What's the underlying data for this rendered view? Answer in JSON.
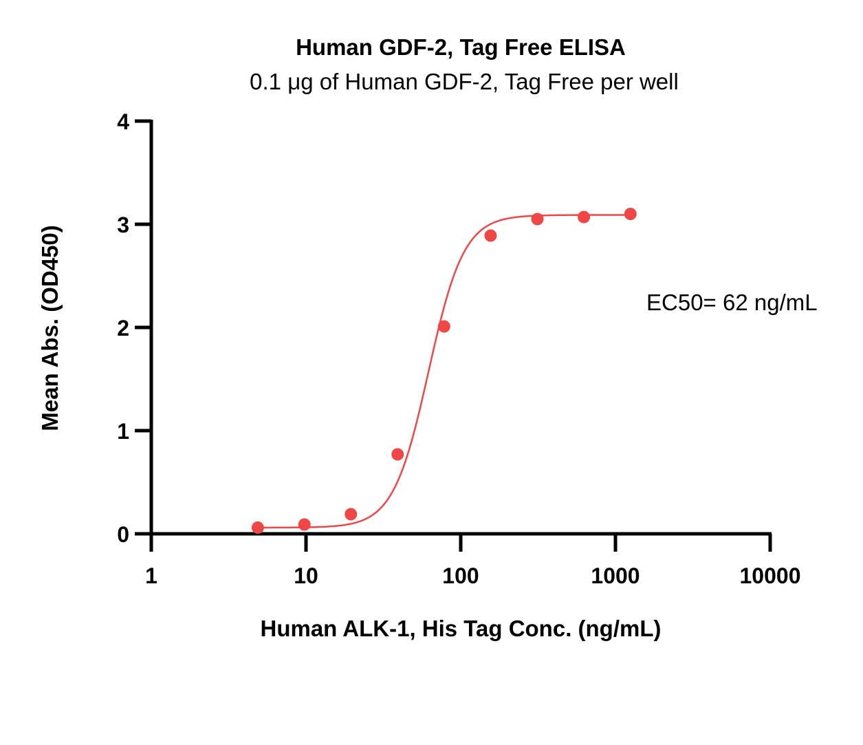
{
  "chart_data": {
    "type": "scatter",
    "title": "Human GDF-2, Tag Free ELISA",
    "subtitle": "0.1 μg of Human GDF-2, Tag Free per well",
    "xlabel": "Human ALK-1, His Tag Conc. (ng/mL)",
    "ylabel": "Mean Abs. (OD450)",
    "x_scale": "log10",
    "xlim": [
      1,
      10000
    ],
    "ylim": [
      0,
      4
    ],
    "x_ticks": [
      "1",
      "10",
      "100",
      "1000",
      "10000"
    ],
    "y_ticks": [
      "0",
      "1",
      "2",
      "3",
      "4"
    ],
    "grid": false,
    "legend": "none",
    "series_color": "#f04646",
    "points": {
      "x": [
        4.88,
        9.77,
        19.5,
        39.1,
        78.1,
        156,
        313,
        625,
        1250
      ],
      "y": [
        0.06,
        0.09,
        0.19,
        0.77,
        2.01,
        2.89,
        3.05,
        3.07,
        3.1
      ]
    },
    "fit": {
      "model": "4PL",
      "bottom": 0.06,
      "top": 3.09,
      "ec50": 62,
      "hill": 3.8,
      "x_range": [
        4.88,
        1250
      ]
    },
    "annotation": "EC50= 62 ng/mL"
  }
}
